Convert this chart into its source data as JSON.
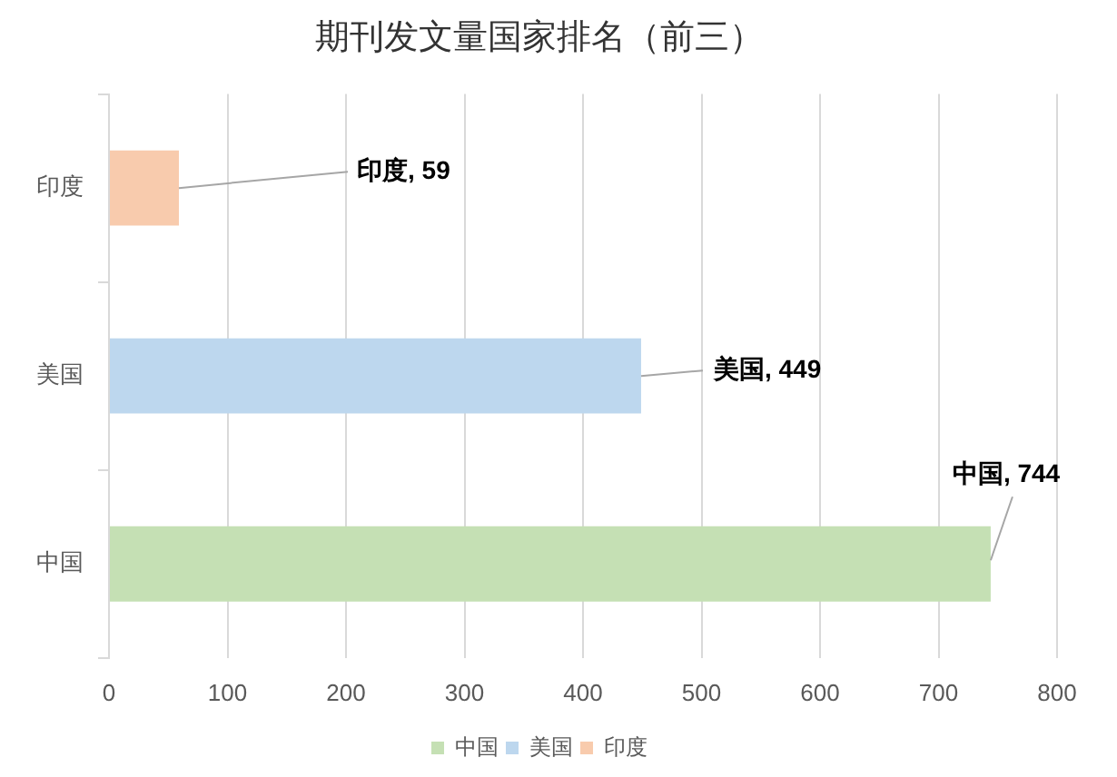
{
  "chart_data": {
    "type": "bar",
    "orientation": "horizontal",
    "stacked": true,
    "title": "期刊发文量国家排名（前三）",
    "categories": [
      "印度",
      "美国",
      "中国"
    ],
    "series": [
      {
        "name": "中国",
        "color": "#c5e0b4",
        "values": [
          null,
          null,
          744
        ],
        "value_labels": [
          null,
          null,
          "中国, 744"
        ]
      },
      {
        "name": "美国",
        "color": "#bdd7ee",
        "values": [
          null,
          449,
          null
        ],
        "value_labels": [
          null,
          "美国, 449",
          null
        ]
      },
      {
        "name": "印度",
        "color": "#f8cbad",
        "values": [
          59,
          null,
          null
        ],
        "value_labels": [
          "印度, 59",
          null,
          null
        ]
      }
    ],
    "xlim": [
      0,
      800
    ],
    "xticks": [
      0,
      100,
      200,
      300,
      400,
      500,
      600,
      700,
      800
    ],
    "grid": "x",
    "legend": "bottom"
  }
}
